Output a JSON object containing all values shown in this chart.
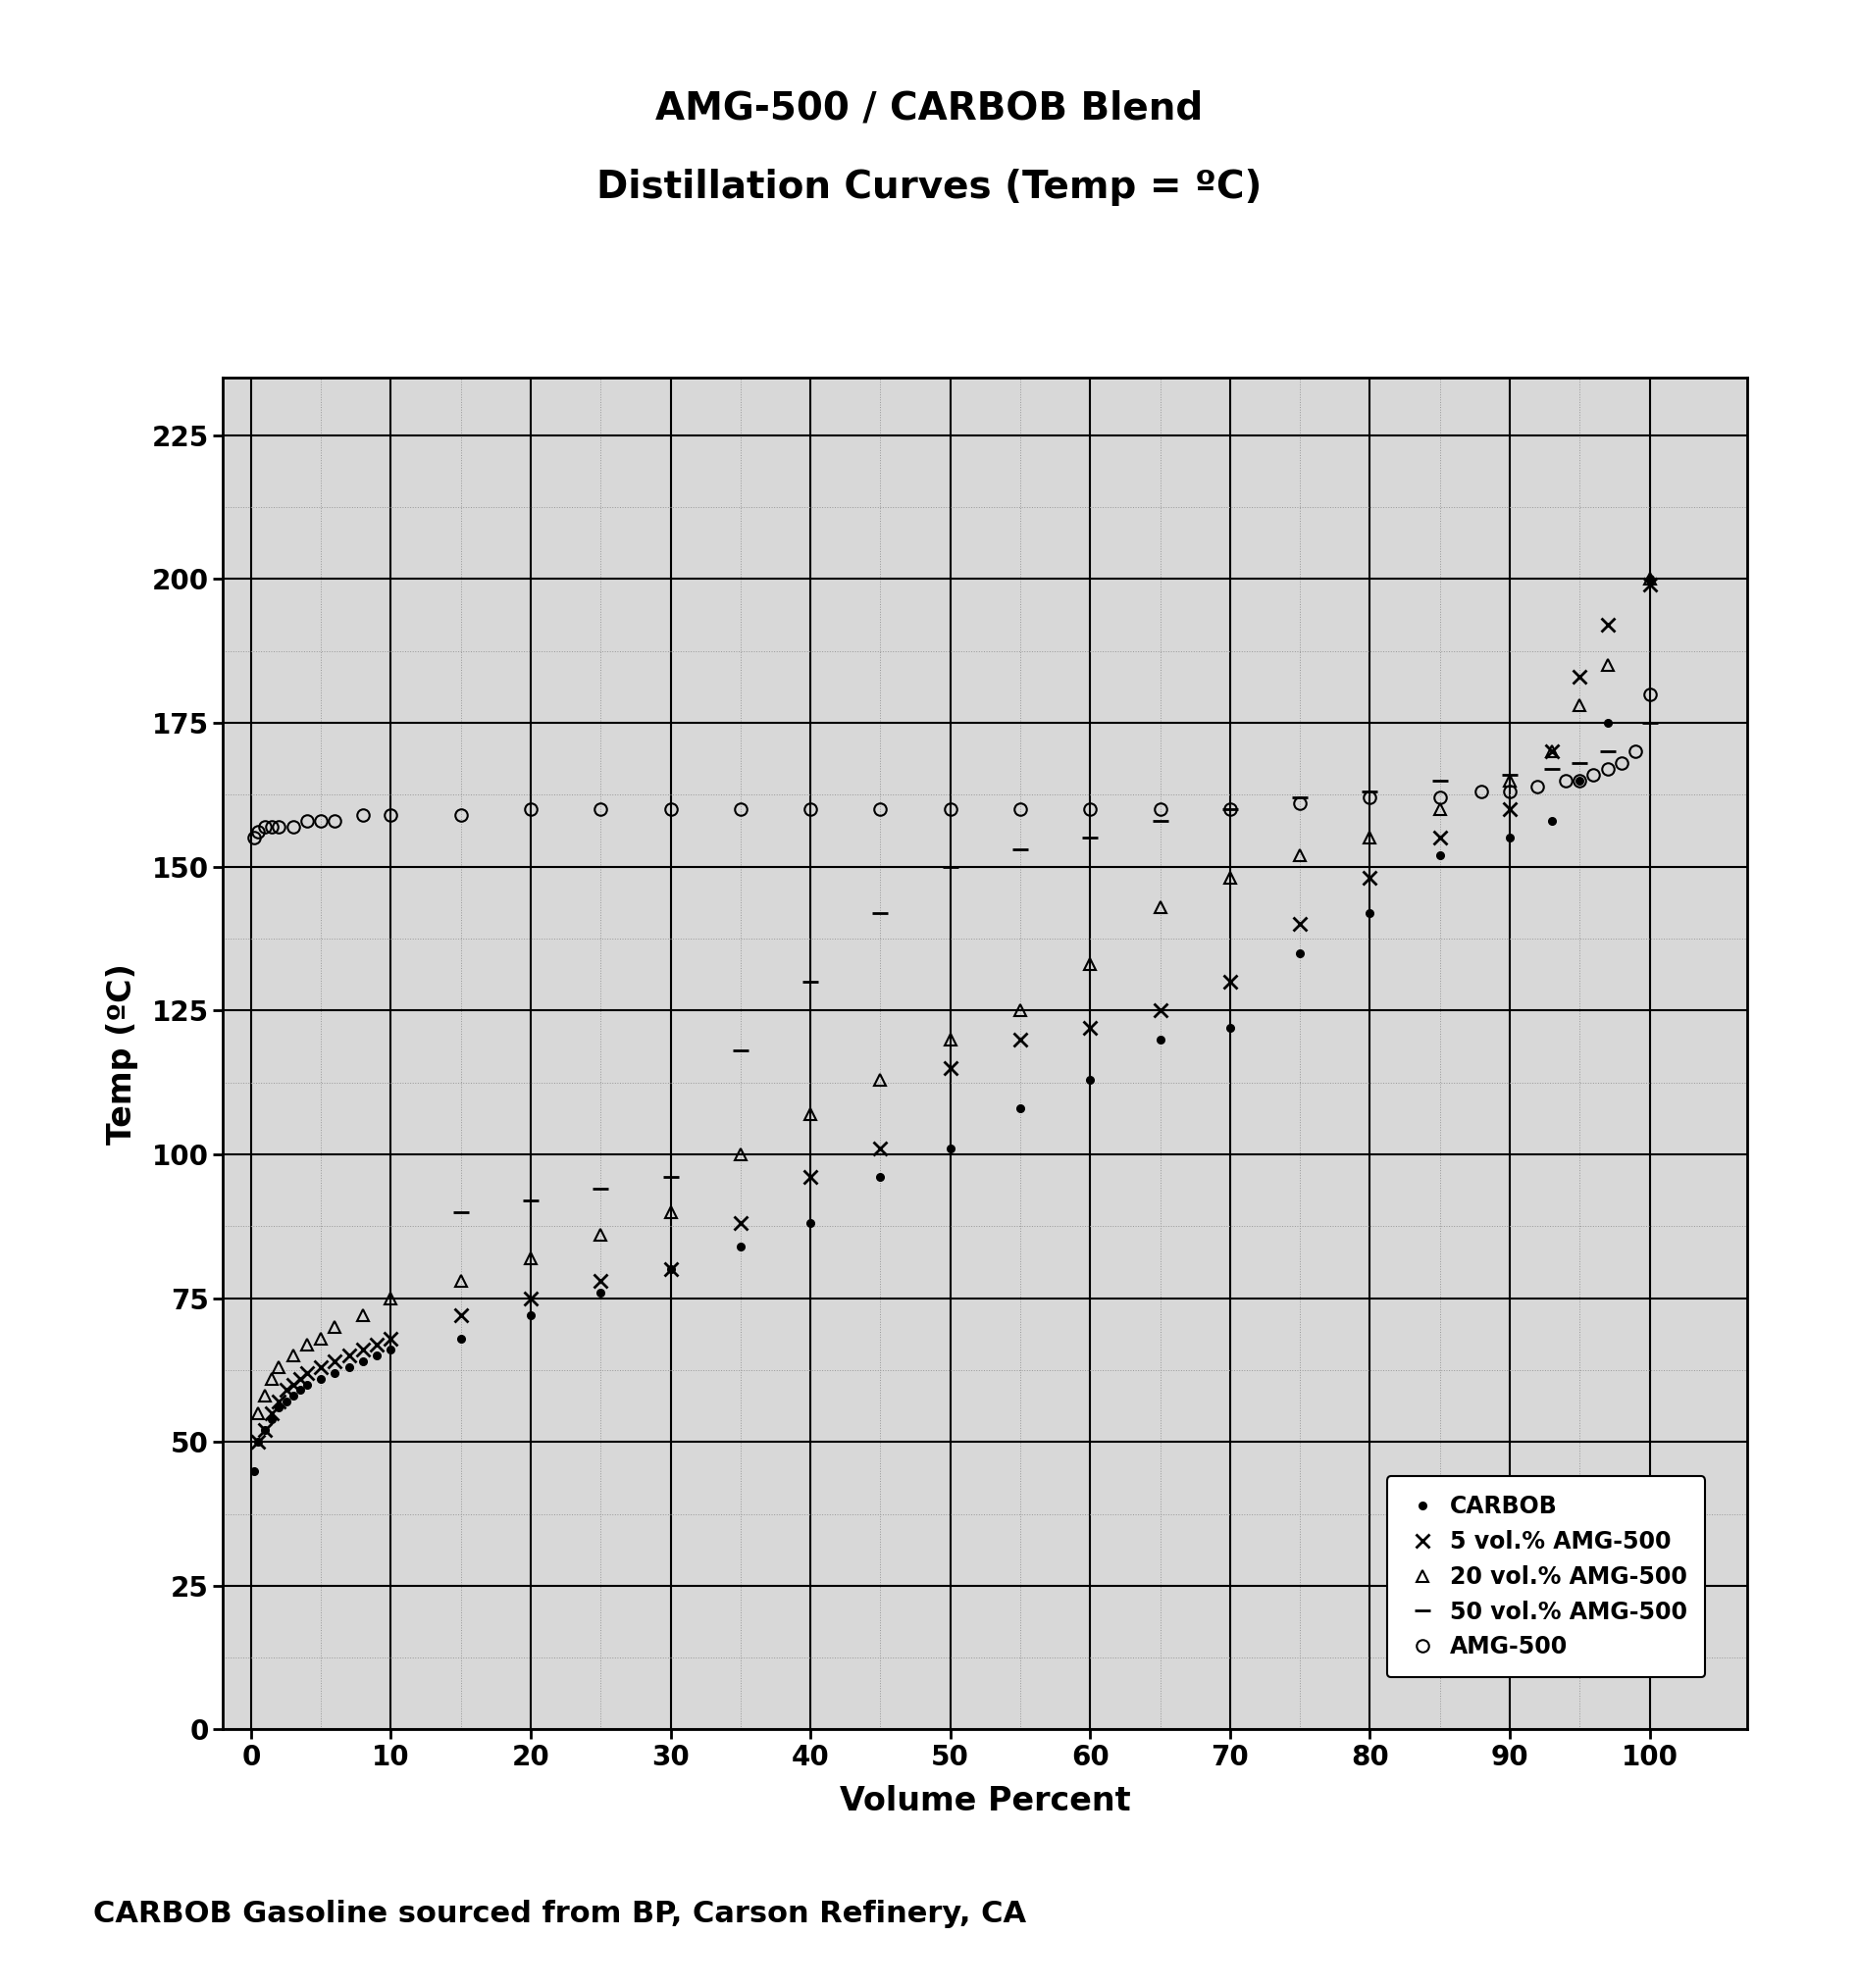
{
  "title_line1": "AMG-500 / CARBOB Blend",
  "title_line2": "Distillation Curves (Temp = ºC)",
  "xlabel": "Volume Percent",
  "ylabel": "Temp (ºC)",
  "footnote": "CARBOB Gasoline sourced from BP, Carson Refinery, CA",
  "xlim": [
    -2,
    107
  ],
  "ylim": [
    0,
    235
  ],
  "xticks": [
    0,
    10,
    20,
    30,
    40,
    50,
    60,
    70,
    80,
    90,
    100
  ],
  "yticks": [
    0,
    25,
    50,
    75,
    100,
    125,
    150,
    175,
    200,
    225
  ],
  "carbob_x": [
    0.2,
    0.5,
    1.0,
    1.5,
    2.0,
    2.5,
    3.0,
    3.5,
    4.0,
    5.0,
    6.0,
    7.0,
    8.0,
    9.0,
    10.0,
    15.0,
    20.0,
    25.0,
    30.0,
    35.0,
    40.0,
    45.0,
    50.0,
    55.0,
    60.0,
    65.0,
    70.0,
    75.0,
    80.0,
    85.0,
    90.0,
    93.0,
    95.0,
    97.0,
    100.0
  ],
  "carbob_y": [
    45,
    50,
    52,
    54,
    56,
    57,
    58,
    59,
    60,
    61,
    62,
    63,
    64,
    65,
    66,
    68,
    72,
    76,
    80,
    84,
    88,
    96,
    101,
    108,
    113,
    120,
    122,
    135,
    142,
    152,
    155,
    158,
    165,
    175,
    200
  ],
  "amg5_x": [
    0.5,
    1.0,
    1.5,
    2.0,
    2.5,
    3.0,
    3.5,
    4.0,
    5.0,
    6.0,
    7.0,
    8.0,
    9.0,
    10.0,
    15.0,
    20.0,
    25.0,
    30.0,
    35.0,
    40.0,
    45.0,
    50.0,
    55.0,
    60.0,
    65.0,
    70.0,
    75.0,
    80.0,
    85.0,
    90.0,
    93.0,
    95.0,
    97.0,
    100.0
  ],
  "amg5_y": [
    50,
    52,
    55,
    57,
    59,
    60,
    61,
    62,
    63,
    64,
    65,
    66,
    67,
    68,
    72,
    75,
    78,
    80,
    88,
    96,
    101,
    115,
    120,
    122,
    125,
    130,
    140,
    148,
    155,
    160,
    170,
    183,
    192,
    199
  ],
  "amg20_x": [
    0.5,
    1.0,
    1.5,
    2.0,
    3.0,
    4.0,
    5.0,
    6.0,
    8.0,
    10.0,
    15.0,
    20.0,
    25.0,
    30.0,
    35.0,
    40.0,
    45.0,
    50.0,
    55.0,
    60.0,
    65.0,
    70.0,
    75.0,
    80.0,
    85.0,
    90.0,
    93.0,
    95.0,
    97.0,
    100.0
  ],
  "amg20_y": [
    55,
    58,
    61,
    63,
    65,
    67,
    68,
    70,
    72,
    75,
    78,
    82,
    86,
    90,
    100,
    107,
    113,
    120,
    125,
    133,
    143,
    148,
    152,
    155,
    160,
    165,
    170,
    178,
    185,
    200
  ],
  "amg50_x": [
    15.0,
    20.0,
    25.0,
    30.0,
    35.0,
    40.0,
    45.0,
    50.0,
    55.0,
    60.0,
    65.0,
    70.0,
    75.0,
    80.0,
    85.0,
    90.0,
    93.0,
    95.0,
    97.0,
    100.0
  ],
  "amg50_y": [
    90,
    92,
    94,
    96,
    118,
    130,
    142,
    150,
    153,
    155,
    158,
    160,
    162,
    163,
    165,
    166,
    167,
    168,
    170,
    175
  ],
  "amg500_x": [
    0.2,
    0.5,
    1.0,
    1.5,
    2.0,
    3.0,
    4.0,
    5.0,
    6.0,
    8.0,
    10.0,
    15.0,
    20.0,
    25.0,
    30.0,
    35.0,
    40.0,
    45.0,
    50.0,
    55.0,
    60.0,
    65.0,
    70.0,
    75.0,
    80.0,
    85.0,
    88.0,
    90.0,
    92.0,
    94.0,
    95.0,
    96.0,
    97.0,
    98.0,
    99.0,
    100.0
  ],
  "amg500_y": [
    155,
    156,
    157,
    157,
    157,
    157,
    158,
    158,
    158,
    159,
    159,
    159,
    160,
    160,
    160,
    160,
    160,
    160,
    160,
    160,
    160,
    160,
    160,
    161,
    162,
    162,
    163,
    163,
    164,
    165,
    165,
    166,
    167,
    168,
    170,
    180
  ],
  "major_grid_color": "#000000",
  "minor_grid_color": "#aaaaaa",
  "plot_bg": "#d8d8d8"
}
